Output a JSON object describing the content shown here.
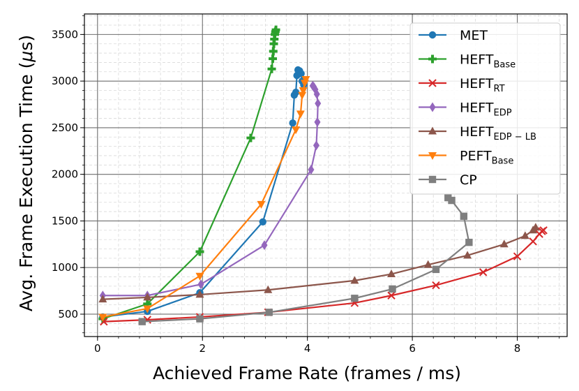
{
  "chart_data": {
    "type": "line",
    "xlabel": "Achieved Frame Rate (frames / ms)",
    "ylabel_main": "Avg. Frame Execution Time (",
    "ylabel_mu": "μ",
    "ylabel_tail": "s)",
    "xlim": [
      -0.25,
      8.95
    ],
    "ylim": [
      260,
      3720
    ],
    "xticks": [
      0,
      2,
      4,
      6,
      8
    ],
    "yticks": [
      500,
      1000,
      1500,
      2000,
      2500,
      3000,
      3500
    ],
    "xtick_labels": [
      "0",
      "2",
      "4",
      "6",
      "8"
    ],
    "ytick_labels": [
      "500",
      "1000",
      "1500",
      "2000",
      "2500",
      "3000",
      "3500"
    ],
    "grid": true,
    "minor_grid": true,
    "legend_position": "top-right",
    "series": [
      {
        "name": "MET",
        "sub": "",
        "color": "#1f77b4",
        "marker": "circle",
        "x": [
          0.1,
          0.95,
          1.95,
          3.15,
          3.72,
          3.75,
          3.78,
          3.8,
          3.82,
          3.85,
          3.88,
          3.9,
          3.93
        ],
        "y": [
          470,
          530,
          730,
          1490,
          2550,
          2850,
          2880,
          3060,
          3120,
          3110,
          3080,
          3000,
          2960
        ]
      },
      {
        "name": "HEFT",
        "sub": "Base",
        "color": "#2ca02c",
        "marker": "plus",
        "x": [
          0.1,
          0.95,
          1.95,
          2.92,
          3.32,
          3.34,
          3.35,
          3.36,
          3.37,
          3.38,
          3.39,
          3.4
        ],
        "y": [
          450,
          610,
          1170,
          2390,
          3130,
          3240,
          3320,
          3400,
          3450,
          3500,
          3530,
          3550
        ]
      },
      {
        "name": "HEFT",
        "sub": "RT",
        "color": "#d62728",
        "marker": "x",
        "x": [
          0.12,
          0.95,
          1.95,
          3.25,
          4.9,
          5.6,
          6.45,
          7.35,
          8.0,
          8.3,
          8.42,
          8.47,
          8.5
        ],
        "y": [
          420,
          440,
          470,
          520,
          620,
          700,
          810,
          950,
          1120,
          1280,
          1360,
          1390,
          1400
        ]
      },
      {
        "name": "HEFT",
        "sub": "EDP",
        "color": "#9467bd",
        "marker": "diamond",
        "x": [
          0.1,
          0.95,
          1.97,
          3.18,
          4.07,
          4.17,
          4.19,
          4.2,
          4.18,
          4.15,
          4.12,
          4.1
        ],
        "y": [
          700,
          700,
          820,
          1240,
          2050,
          2310,
          2560,
          2760,
          2860,
          2910,
          2940,
          2950
        ]
      },
      {
        "name": "HEFT",
        "sub": "EDP − LB",
        "color": "#8c564b",
        "marker": "triangle-up",
        "x": [
          0.1,
          0.95,
          1.95,
          3.25,
          4.9,
          5.6,
          6.3,
          7.05,
          7.75,
          8.15,
          8.3,
          8.35
        ],
        "y": [
          660,
          680,
          710,
          760,
          860,
          930,
          1030,
          1130,
          1250,
          1340,
          1400,
          1430
        ]
      },
      {
        "name": "PEFT",
        "sub": "Base",
        "color": "#ff7f0e",
        "marker": "triangle-down",
        "x": [
          0.1,
          0.95,
          1.95,
          3.12,
          3.78,
          3.87,
          3.9,
          3.92,
          3.95,
          3.97
        ],
        "y": [
          470,
          560,
          910,
          1680,
          2480,
          2650,
          2850,
          2900,
          2980,
          3020
        ]
      },
      {
        "name": "CP",
        "sub": "",
        "color": "#7f7f7f",
        "marker": "square",
        "x": [
          0.85,
          1.95,
          3.27,
          4.9,
          5.62,
          6.45,
          7.08,
          6.98,
          6.75,
          6.68
        ],
        "y": [
          420,
          450,
          520,
          670,
          770,
          980,
          1270,
          1550,
          1720,
          1750
        ]
      }
    ]
  }
}
